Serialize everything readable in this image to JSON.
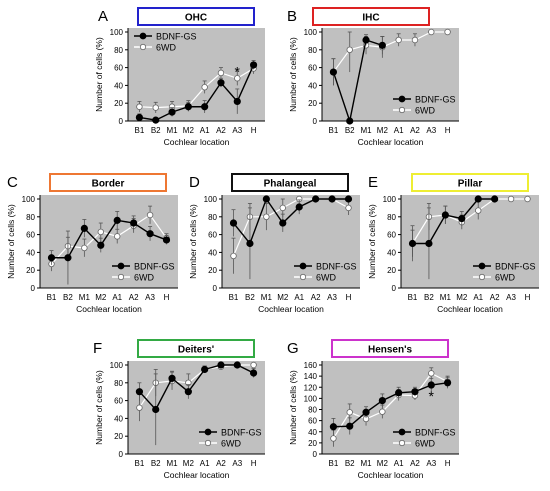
{
  "figure": {
    "series_names": [
      "BDNF-GS",
      "6WD"
    ],
    "xlabel": "Cochlear location",
    "ylabel": "Number of cells (%)",
    "categories": [
      "B1",
      "B2",
      "M1",
      "M2",
      "A1",
      "A2",
      "A3",
      "H"
    ]
  },
  "chart_data": [
    {
      "type": "line",
      "letter": "A",
      "title": "OHC",
      "title_color": "#2222cc",
      "ylim": [
        0,
        100
      ],
      "yticks": [
        0,
        20,
        40,
        60,
        80,
        100
      ],
      "legend": "top-left",
      "annotation": "*",
      "annotation_at": [
        6,
        57
      ],
      "series": [
        {
          "name": "BDNF-GS",
          "values": [
            4,
            1,
            10,
            16,
            16,
            43,
            22,
            63
          ],
          "err": [
            4,
            2,
            5,
            5,
            7,
            5,
            14,
            5
          ]
        },
        {
          "name": "6WD",
          "values": [
            16,
            15,
            16,
            17,
            38,
            54,
            48,
            59
          ],
          "err": [
            6,
            6,
            6,
            6,
            7,
            6,
            8,
            6
          ]
        }
      ]
    },
    {
      "type": "line",
      "letter": "B",
      "title": "IHC",
      "title_color": "#dd2222",
      "ylim": [
        0,
        100
      ],
      "yticks": [
        0,
        20,
        40,
        60,
        80,
        100
      ],
      "legend": "bottom-right",
      "series": [
        {
          "name": "BDNF-GS",
          "values": [
            55,
            0,
            91,
            85,
            null,
            null,
            null,
            null
          ],
          "err": [
            15,
            0,
            6,
            10,
            0,
            0,
            0,
            0
          ]
        },
        {
          "name": "6WD",
          "values": [
            55,
            80,
            85,
            83,
            91,
            91,
            100,
            100
          ],
          "err": [
            15,
            25,
            10,
            12,
            7,
            7,
            0,
            0
          ]
        }
      ]
    },
    {
      "type": "line",
      "letter": "C",
      "title": "Border",
      "title_color": "#ee7733",
      "ylim": [
        0,
        100
      ],
      "yticks": [
        0,
        20,
        40,
        60,
        80,
        100
      ],
      "legend": "bottom-right",
      "series": [
        {
          "name": "BDNF-GS",
          "values": [
            34,
            34,
            67,
            48,
            76,
            73,
            61,
            54
          ],
          "err": [
            8,
            30,
            10,
            8,
            10,
            8,
            8,
            5
          ]
        },
        {
          "name": "6WD",
          "values": [
            27,
            47,
            45,
            63,
            58,
            70,
            82,
            56
          ],
          "err": [
            8,
            10,
            10,
            10,
            8,
            8,
            10,
            5
          ]
        }
      ]
    },
    {
      "type": "line",
      "letter": "D",
      "title": "Phalangeal",
      "title_color": "#111111",
      "ylim": [
        0,
        100
      ],
      "yticks": [
        0,
        20,
        40,
        60,
        80,
        100
      ],
      "legend": "bottom-right",
      "series": [
        {
          "name": "BDNF-GS",
          "values": [
            73,
            50,
            100,
            73,
            91,
            100,
            100,
            100
          ],
          "err": [
            15,
            40,
            0,
            10,
            8,
            0,
            0,
            0
          ]
        },
        {
          "name": "6WD",
          "values": [
            36,
            80,
            80,
            90,
            100,
            100,
            100,
            90
          ],
          "err": [
            20,
            15,
            15,
            10,
            0,
            0,
            0,
            8
          ]
        }
      ]
    },
    {
      "type": "line",
      "letter": "E",
      "title": "Pillar",
      "title_color": "#eeee33",
      "ylim": [
        0,
        100
      ],
      "yticks": [
        0,
        20,
        40,
        60,
        80,
        100
      ],
      "legend": "bottom-right",
      "series": [
        {
          "name": "BDNF-GS",
          "values": [
            50,
            50,
            82,
            78,
            100,
            100,
            null,
            null
          ],
          "err": [
            15,
            40,
            10,
            8,
            0,
            0,
            0,
            0
          ]
        },
        {
          "name": "6WD",
          "values": [
            50,
            80,
            82,
            74,
            87,
            100,
            100,
            100
          ],
          "err": [
            20,
            15,
            10,
            8,
            10,
            0,
            0,
            0
          ]
        }
      ]
    },
    {
      "type": "line",
      "letter": "F",
      "title": "Deiters'",
      "title_color": "#33aa44",
      "ylim": [
        0,
        100
      ],
      "yticks": [
        0,
        20,
        40,
        60,
        80,
        100
      ],
      "legend": "bottom-right",
      "series": [
        {
          "name": "BDNF-GS",
          "values": [
            70,
            50,
            85,
            70,
            95,
            100,
            100,
            91
          ],
          "err": [
            10,
            40,
            8,
            8,
            4,
            0,
            0,
            5
          ]
        },
        {
          "name": "6WD",
          "values": [
            52,
            80,
            82,
            80,
            95,
            98,
            100,
            100
          ],
          "err": [
            15,
            15,
            10,
            10,
            4,
            2,
            0,
            0
          ]
        }
      ]
    },
    {
      "type": "line",
      "letter": "G",
      "title": "Hensen's",
      "title_color": "#cc33cc",
      "ylim": [
        0,
        160
      ],
      "yticks": [
        0,
        20,
        40,
        60,
        80,
        100,
        120,
        140,
        160
      ],
      "legend": "bottom-right",
      "annotation": "*",
      "annotation_at": [
        6,
        106
      ],
      "series": [
        {
          "name": "BDNF-GS",
          "values": [
            49,
            50,
            75,
            96,
            110,
            112,
            124,
            128
          ],
          "err": [
            15,
            15,
            10,
            12,
            10,
            8,
            12,
            10
          ]
        },
        {
          "name": "6WD",
          "values": [
            28,
            75,
            63,
            76,
            106,
            105,
            145,
            130
          ],
          "err": [
            15,
            15,
            12,
            12,
            10,
            8,
            10,
            10
          ]
        }
      ]
    }
  ]
}
